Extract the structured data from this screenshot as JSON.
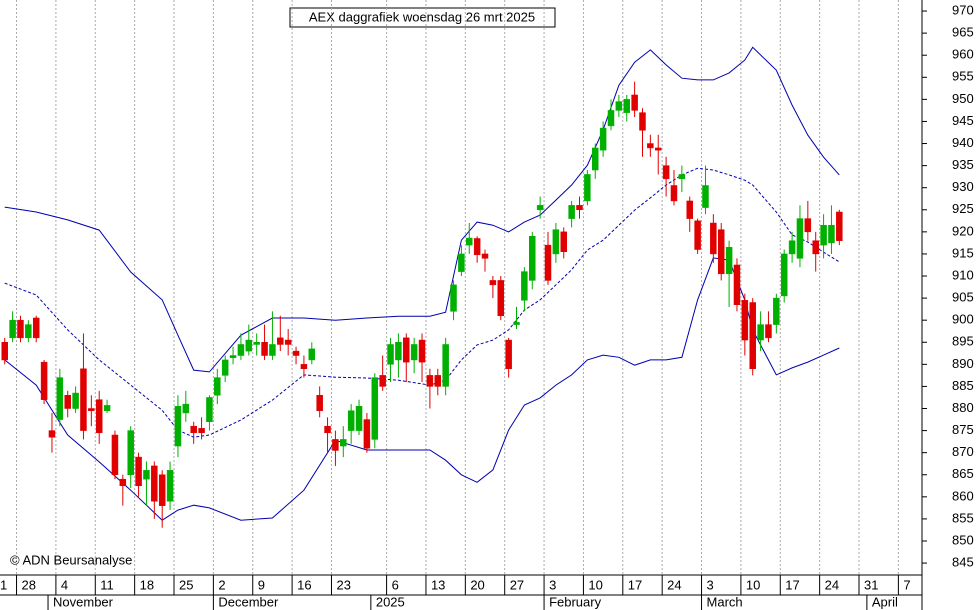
{
  "chart_data": {
    "type": "candlestick",
    "title": "AEX daggrafiek woensdag 26 mrt 2025",
    "credit": "© ADN Beursanalyse",
    "up_color": "#00b000",
    "down_color": "#e00000",
    "band_color": "#0000b0",
    "open": [
      895,
      896,
      900,
      896,
      900.5,
      890.5,
      875,
      877.5,
      883,
      880,
      889,
      880,
      882,
      879.5,
      874,
      864,
      865,
      869,
      864,
      867,
      865,
      859,
      871.5,
      879,
      876,
      875.5,
      877,
      883,
      887.5,
      891.5,
      892,
      893,
      894.5,
      895,
      892,
      896,
      895.5,
      893,
      890,
      891,
      883,
      876,
      873,
      871.5,
      875,
      875,
      877.5,
      873,
      887.5,
      890,
      891,
      896,
      891,
      895.5,
      887.5,
      887.5,
      885,
      902,
      911,
      917,
      918.5,
      915,
      909,
      909,
      895.5,
      899,
      904.5,
      909,
      925,
      917,
      915,
      920,
      923,
      926,
      927,
      934,
      938.5,
      944,
      947.5,
      947,
      951,
      947,
      940,
      939,
      935,
      930.5,
      932,
      927,
      922.5,
      925.5,
      922,
      920.5,
      910.5,
      912.5,
      904.5,
      904,
      895.5,
      899,
      899,
      905.5,
      915,
      914,
      923,
      918,
      917,
      917.5,
      924.5
    ],
    "high": [
      896,
      902,
      901,
      900,
      901,
      891,
      879,
      889,
      884,
      885,
      897,
      883,
      884,
      882,
      875,
      865,
      876,
      870,
      868,
      868,
      866,
      868,
      883,
      884,
      877,
      878,
      883,
      889,
      892,
      894,
      897,
      899,
      897,
      899,
      902,
      901,
      898,
      894,
      892,
      895,
      885,
      878,
      875,
      876,
      881,
      882,
      879,
      888,
      892,
      896,
      897,
      897,
      896,
      897,
      889,
      889,
      896,
      909,
      917,
      922,
      919,
      916,
      910,
      910,
      896,
      903,
      912,
      920,
      928,
      920,
      922,
      921,
      927,
      928,
      934,
      940,
      945,
      950,
      951,
      951,
      954,
      948,
      942,
      942,
      937,
      934,
      935,
      928,
      923,
      935,
      924,
      922,
      918,
      914,
      906,
      905,
      902,
      902,
      906,
      916,
      920,
      926,
      927,
      920,
      924,
      926,
      925
    ],
    "low": [
      890,
      895,
      895,
      895,
      895,
      881,
      870,
      876,
      878,
      879,
      873,
      876,
      872,
      879,
      864,
      858,
      862,
      860,
      858,
      855,
      853,
      857,
      869,
      877,
      872,
      873,
      875,
      881,
      886,
      890,
      891,
      892,
      892,
      891,
      891,
      893,
      892,
      890,
      887,
      890,
      878,
      870,
      867,
      869,
      872,
      874,
      870,
      871,
      884,
      886,
      887,
      886,
      888,
      886,
      880,
      883,
      883,
      900,
      910,
      915,
      913,
      911,
      905,
      900,
      887,
      898,
      902,
      907,
      923,
      908,
      913,
      914,
      921,
      923,
      926,
      932,
      937,
      943,
      946,
      945,
      946,
      937,
      937,
      933,
      928,
      926,
      929,
      920,
      915,
      924,
      913,
      909,
      903,
      902,
      892,
      887.5,
      893,
      895,
      897,
      904,
      913,
      912,
      918,
      911,
      914,
      915,
      917
    ],
    "close": [
      891,
      900,
      896,
      899,
      896,
      882,
      873.5,
      887,
      880,
      883.5,
      875,
      879.5,
      874.5,
      880.7,
      865,
      862.5,
      875,
      862.5,
      866,
      859,
      858,
      866,
      880.5,
      881,
      874.5,
      874.5,
      882.5,
      887,
      891,
      892,
      894.5,
      895.5,
      895,
      892,
      894.5,
      894.5,
      894.5,
      892,
      889,
      893.5,
      879.5,
      874.5,
      870.5,
      873,
      879.5,
      880.5,
      871,
      887,
      885,
      894.5,
      895,
      890.5,
      894.5,
      890.5,
      885,
      885,
      894.5,
      908,
      915,
      918.6,
      914.8,
      914,
      908,
      901,
      889,
      899.5,
      911,
      919,
      926,
      909,
      920.5,
      915.5,
      926,
      925,
      933,
      939,
      943.5,
      947.5,
      949.5,
      950,
      947.5,
      943,
      939,
      938.5,
      932,
      927,
      933,
      923,
      916,
      930.5,
      915,
      910.5,
      916.5,
      903.5,
      895.5,
      889,
      899,
      896,
      905,
      915,
      918,
      923,
      920,
      915,
      921.5,
      921.5,
      918
    ],
    "series": [
      {
        "name": "upper",
        "x": [
          0,
          4,
          8,
          12,
          16,
          20,
          22,
          24,
          26,
          30,
          34,
          38,
          42,
          46,
          50,
          54,
          56,
          58,
          60,
          62,
          64,
          66,
          68,
          70,
          72,
          74,
          76,
          78,
          80,
          82,
          84,
          86,
          88,
          90,
          92,
          94,
          95,
          98,
          100,
          102,
          104,
          106
        ],
        "values": [
          925.6,
          924.5,
          922.7,
          920.4,
          910.9,
          904.6,
          896.6,
          888.7,
          888.3,
          896.6,
          900.5,
          900.5,
          900,
          900.5,
          900.9,
          900.9,
          901.8,
          918.1,
          922.2,
          921.5,
          920,
          922.2,
          923.8,
          927.2,
          930.6,
          935.1,
          943.1,
          953.2,
          958.4,
          961.2,
          957.8,
          954.8,
          954.4,
          954.4,
          956,
          958.9,
          961.8,
          956.6,
          948.7,
          941.9,
          936.9,
          932.9
        ]
      },
      {
        "name": "middle",
        "x": [
          0,
          4,
          8,
          12,
          16,
          20,
          22,
          24,
          26,
          30,
          34,
          38,
          42,
          46,
          50,
          54,
          56,
          58,
          60,
          62,
          64,
          66,
          68,
          70,
          72,
          74,
          76,
          78,
          80,
          82,
          84,
          86,
          88,
          90,
          92,
          94,
          95,
          98,
          100,
          102,
          104,
          106
        ],
        "values": [
          908.4,
          905.7,
          897.8,
          891,
          885.3,
          879.6,
          875.1,
          873.5,
          874,
          877.4,
          881.9,
          887.6,
          887.1,
          886.9,
          886.4,
          885.3,
          886.4,
          891,
          894.4,
          895.5,
          897.8,
          902.3,
          904.6,
          908,
          911.4,
          915.9,
          918.1,
          921.5,
          924.9,
          927.7,
          930.6,
          932.9,
          934.4,
          934,
          932.9,
          931.7,
          930.6,
          924.5,
          919.3,
          917.7,
          915.4,
          913.2
        ]
      },
      {
        "name": "lower",
        "x": [
          0,
          4,
          8,
          12,
          16,
          20,
          22,
          24,
          26,
          30,
          34,
          38,
          42,
          46,
          50,
          54,
          56,
          58,
          60,
          62,
          64,
          66,
          68,
          70,
          72,
          74,
          76,
          78,
          80,
          82,
          84,
          86,
          88,
          90,
          92,
          94,
          95,
          98,
          100,
          102,
          104,
          106
        ],
        "values": [
          891,
          885.3,
          874,
          867.9,
          861.5,
          854.7,
          857,
          858.1,
          857.5,
          854.7,
          855.2,
          861.5,
          872.8,
          870.6,
          870.6,
          870.6,
          868.3,
          865,
          863.3,
          866.1,
          875.1,
          880.8,
          882.4,
          885.3,
          887.6,
          891,
          892.1,
          891.6,
          889.8,
          891,
          891,
          891.6,
          904.6,
          914.1,
          913.6,
          904.6,
          897.8,
          887.6,
          889.2,
          890.5,
          892.1,
          893.7
        ]
      }
    ],
    "xlim": [
      -0.6,
      116.5
    ],
    "xticks": [
      {
        "value": -3,
        "label": "1"
      },
      {
        "value": 2,
        "label": "28"
      },
      {
        "value": 7,
        "label": "4"
      },
      {
        "value": 12,
        "label": "11"
      },
      {
        "value": 17,
        "label": "18"
      },
      {
        "value": 22,
        "label": "25"
      },
      {
        "value": 27,
        "label": "2"
      },
      {
        "value": 32,
        "label": "9"
      },
      {
        "value": 37,
        "label": "16"
      },
      {
        "value": 42,
        "label": "23"
      },
      {
        "value": 49,
        "label": "6"
      },
      {
        "value": 54,
        "label": "13"
      },
      {
        "value": 59,
        "label": "20"
      },
      {
        "value": 64,
        "label": "27"
      },
      {
        "value": 69,
        "label": "3"
      },
      {
        "value": 74,
        "label": "10"
      },
      {
        "value": 79,
        "label": "17"
      },
      {
        "value": 84,
        "label": "24"
      },
      {
        "value": 89,
        "label": "3"
      },
      {
        "value": 94,
        "label": "10"
      },
      {
        "value": 99,
        "label": "17"
      },
      {
        "value": 104,
        "label": "24"
      },
      {
        "value": 109,
        "label": "31"
      },
      {
        "value": 114,
        "label": "7"
      }
    ],
    "months": [
      {
        "value": 6,
        "label": "November"
      },
      {
        "value": 27,
        "label": "December"
      },
      {
        "value": 47,
        "label": "2025"
      },
      {
        "value": 69,
        "label": "February"
      },
      {
        "value": 89,
        "label": "March"
      },
      {
        "value": 110,
        "label": "April"
      }
    ],
    "ylim": [
      842.3,
      972.5
    ],
    "yticks": [
      845,
      850,
      855,
      860,
      865,
      870,
      875,
      880,
      885,
      890,
      895,
      900,
      905,
      910,
      915,
      920,
      925,
      930,
      935,
      940,
      945,
      950,
      955,
      960,
      965,
      970
    ],
    "grid": true
  }
}
